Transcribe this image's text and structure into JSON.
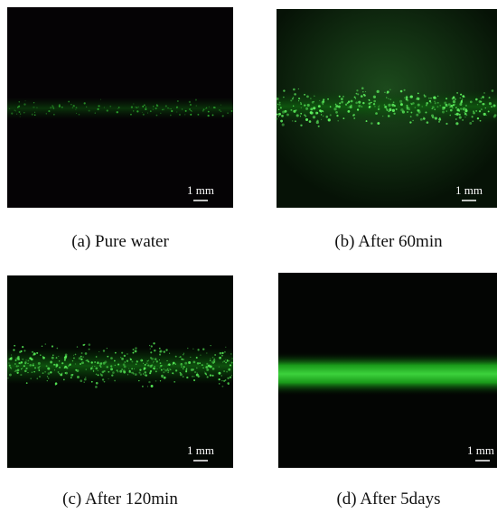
{
  "panels": [
    {
      "caption": "(a) Pure water",
      "scale": "1 mm"
    },
    {
      "caption": "(b) After 60min",
      "scale": "1 mm"
    },
    {
      "caption": "(c) After 120min",
      "scale": "1 mm"
    },
    {
      "caption": "(d) After 5days",
      "scale": "1 mm"
    }
  ]
}
